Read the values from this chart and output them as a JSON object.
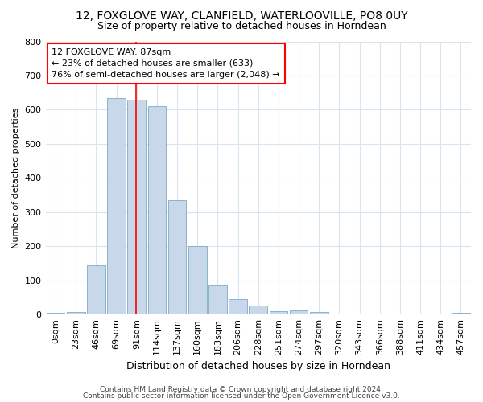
{
  "title1": "12, FOXGLOVE WAY, CLANFIELD, WATERLOOVILLE, PO8 0UY",
  "title2": "Size of property relative to detached houses in Horndean",
  "xlabel": "Distribution of detached houses by size in Horndean",
  "ylabel": "Number of detached properties",
  "categories": [
    "0sqm",
    "23sqm",
    "46sqm",
    "69sqm",
    "91sqm",
    "114sqm",
    "137sqm",
    "160sqm",
    "183sqm",
    "206sqm",
    "228sqm",
    "251sqm",
    "274sqm",
    "297sqm",
    "320sqm",
    "343sqm",
    "366sqm",
    "388sqm",
    "411sqm",
    "434sqm",
    "457sqm"
  ],
  "values": [
    5,
    8,
    145,
    635,
    630,
    610,
    335,
    200,
    85,
    45,
    27,
    10,
    12,
    8,
    0,
    0,
    0,
    0,
    0,
    0,
    5
  ],
  "bar_color": "#c8d8ea",
  "bar_edge_color": "#7aaac8",
  "vline_x": 3.95,
  "vline_color": "red",
  "annotation_line1": "12 FOXGLOVE WAY: 87sqm",
  "annotation_line2": "← 23% of detached houses are smaller (633)",
  "annotation_line3": "76% of semi-detached houses are larger (2,048) →",
  "annotation_box_color": "white",
  "annotation_box_edge": "red",
  "footer1": "Contains HM Land Registry data © Crown copyright and database right 2024.",
  "footer2": "Contains public sector information licensed under the Open Government Licence v3.0.",
  "ylim": [
    0,
    800
  ],
  "yticks": [
    0,
    100,
    200,
    300,
    400,
    500,
    600,
    700,
    800
  ],
  "bg_color": "#ffffff",
  "grid_color": "#d8e4ee",
  "title1_fontsize": 10,
  "title2_fontsize": 9,
  "xlabel_fontsize": 9,
  "ylabel_fontsize": 8,
  "tick_fontsize": 8,
  "footer_fontsize": 6.5,
  "annot_fontsize": 8
}
